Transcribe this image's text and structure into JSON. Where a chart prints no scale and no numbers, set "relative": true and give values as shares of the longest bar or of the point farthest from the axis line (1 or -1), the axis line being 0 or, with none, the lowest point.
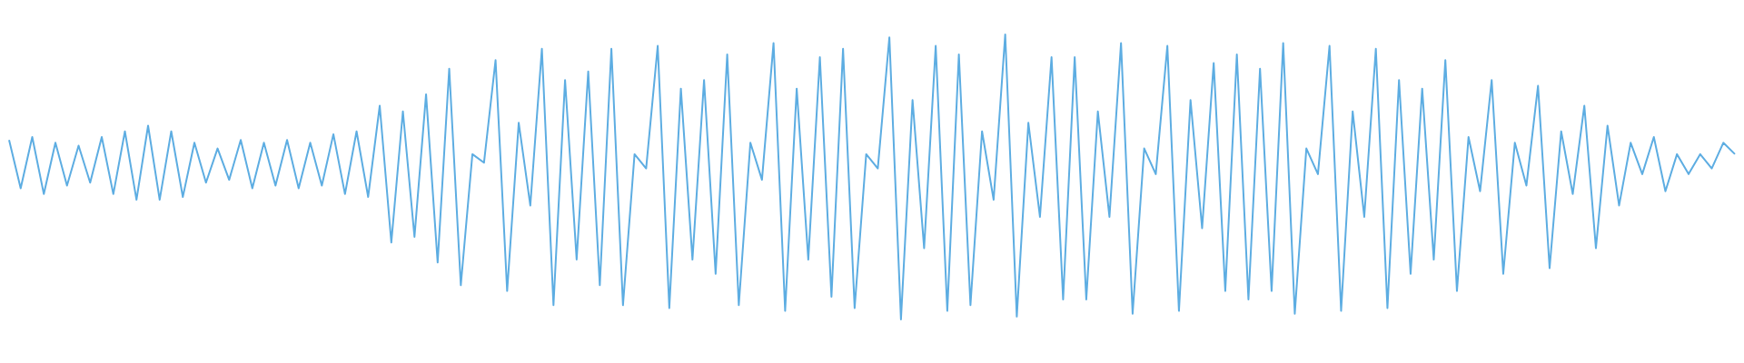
{
  "chart_data": {
    "type": "line",
    "relative": true,
    "categories": [
      null,
      null,
      null,
      null,
      null,
      null,
      null,
      null,
      null,
      null,
      null,
      null,
      null,
      null,
      null,
      null,
      null,
      null,
      null,
      null,
      null,
      null,
      null,
      null,
      null,
      null,
      null,
      null,
      null,
      null,
      null,
      null,
      null,
      null,
      null,
      null,
      null,
      null,
      null,
      null,
      null,
      null,
      null,
      null,
      null,
      null,
      null,
      null,
      null,
      null,
      null,
      null,
      null,
      null,
      null,
      null,
      null,
      null,
      null,
      null,
      null,
      null,
      null,
      null,
      null,
      null,
      null,
      null,
      null,
      null,
      null,
      null,
      null,
      null,
      null,
      null,
      null,
      null,
      null,
      null,
      null,
      null,
      null,
      null,
      null,
      null,
      null,
      null,
      null,
      null,
      null,
      null,
      null,
      null,
      null,
      null,
      null,
      null,
      null,
      null,
      null,
      null,
      null,
      null,
      null,
      null,
      null,
      null,
      null,
      null,
      null,
      null,
      null,
      null,
      null,
      null,
      null,
      null,
      null,
      null,
      null,
      null,
      null,
      null,
      null,
      null,
      null,
      null,
      null,
      null,
      null,
      null,
      null,
      null,
      null,
      null,
      null,
      null,
      null,
      null,
      null,
      null,
      null,
      null,
      null,
      null,
      null,
      null,
      null,
      null
    ],
    "series": [
      {
        "color": "#5dade2",
        "values": [
          0.63,
          0.46,
          0.64,
          0.44,
          0.62,
          0.47,
          0.61,
          0.48,
          0.64,
          0.44,
          0.66,
          0.42,
          0.68,
          0.42,
          0.66,
          0.43,
          0.62,
          0.48,
          0.6,
          0.49,
          0.63,
          0.46,
          0.62,
          0.47,
          0.63,
          0.46,
          0.62,
          0.47,
          0.65,
          0.44,
          0.66,
          0.43,
          0.75,
          0.27,
          0.73,
          0.29,
          0.79,
          0.2,
          0.88,
          0.12,
          0.58,
          0.55,
          0.91,
          0.1,
          0.69,
          0.4,
          0.95,
          0.05,
          0.84,
          0.21,
          0.87,
          0.12,
          0.95,
          0.05,
          0.58,
          0.53,
          0.96,
          0.04,
          0.81,
          0.21,
          0.84,
          0.16,
          0.93,
          0.05,
          0.62,
          0.49,
          0.97,
          0.03,
          0.81,
          0.21,
          0.92,
          0.08,
          0.95,
          0.04,
          0.58,
          0.53,
          0.99,
          0.0,
          0.77,
          0.25,
          0.96,
          0.03,
          0.93,
          0.05,
          0.66,
          0.42,
          1.0,
          0.01,
          0.69,
          0.36,
          0.92,
          0.07,
          0.92,
          0.07,
          0.73,
          0.36,
          0.97,
          0.02,
          0.6,
          0.51,
          0.96,
          0.03,
          0.77,
          0.32,
          0.9,
          0.1,
          0.93,
          0.07,
          0.88,
          0.1,
          0.97,
          0.02,
          0.6,
          0.51,
          0.96,
          0.03,
          0.73,
          0.36,
          0.95,
          0.04,
          0.84,
          0.16,
          0.81,
          0.21,
          0.91,
          0.1,
          0.64,
          0.45,
          0.84,
          0.16,
          0.62,
          0.47,
          0.82,
          0.18,
          0.66,
          0.44,
          0.75,
          0.25,
          0.68,
          0.4,
          0.62,
          0.51,
          0.64,
          0.45,
          0.58,
          0.51,
          0.58,
          0.53,
          0.62,
          0.58
        ]
      }
    ]
  }
}
